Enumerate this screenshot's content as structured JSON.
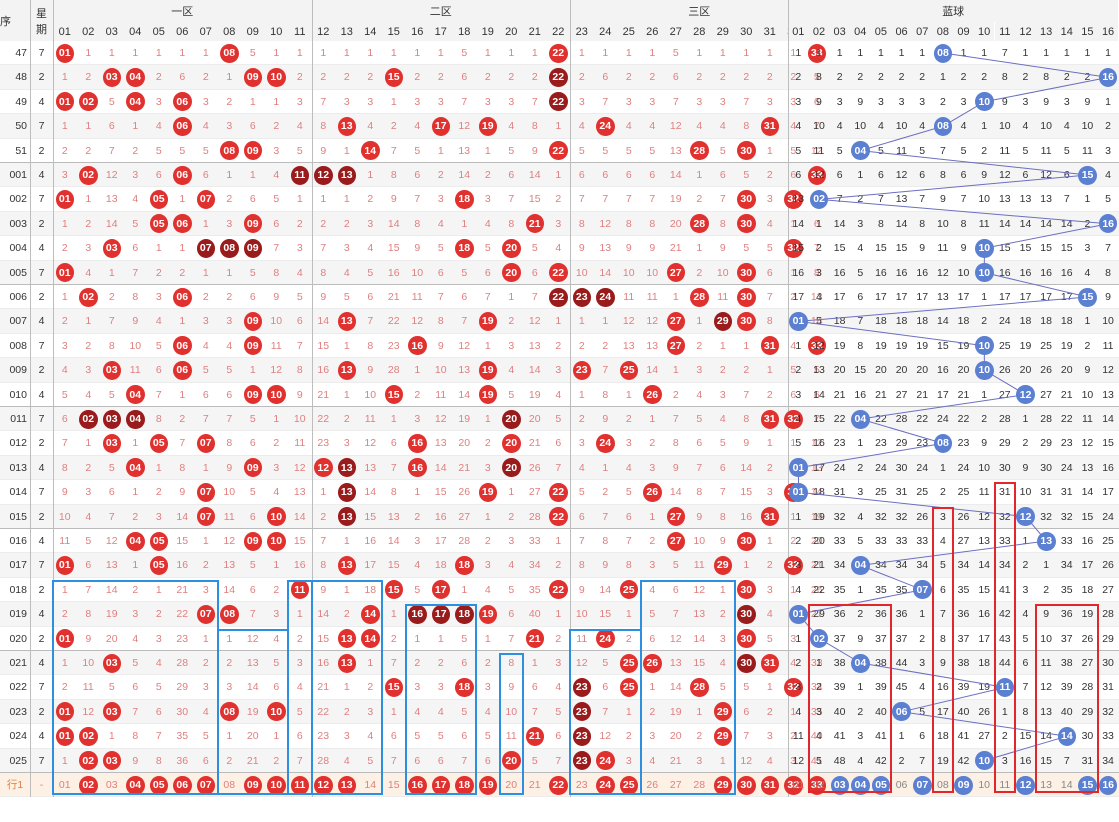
{
  "header": {
    "sort_label": "序",
    "weekday_label": [
      "星",
      "期"
    ],
    "zones": [
      "一区",
      "二区",
      "三区",
      "蓝球"
    ],
    "red_numbers": [
      "01",
      "02",
      "03",
      "04",
      "05",
      "06",
      "07",
      "08",
      "09",
      "10",
      "11",
      "12",
      "13",
      "14",
      "15",
      "16",
      "17",
      "18",
      "19",
      "20",
      "21",
      "22",
      "23",
      "24",
      "25",
      "26",
      "27",
      "28",
      "29",
      "30",
      "31",
      "32",
      "33"
    ],
    "blue_numbers": [
      "01",
      "02",
      "03",
      "04",
      "05",
      "06",
      "07",
      "08",
      "09",
      "10",
      "11",
      "12",
      "13",
      "14",
      "15",
      "16"
    ]
  },
  "colors": {
    "red_ball": "#e0312f",
    "dark_ball": "#9a1b1b",
    "blue_ball": "#5b7fd1",
    "red_miss_text": "#e07f7f",
    "blue_box": "#2d8fe0",
    "red_box": "#e3262b",
    "stripe": "#f5f5f5",
    "pick_row": "#fdf0e4"
  },
  "rows": [
    {
      "issue": "47",
      "week": "7",
      "red": [
        1,
        8,
        22,
        33
      ],
      "dark": [],
      "blue": 8
    },
    {
      "issue": "48",
      "week": "2",
      "red": [
        3,
        4,
        9,
        10,
        15
      ],
      "dark": [
        22
      ],
      "blue": 16
    },
    {
      "issue": "49",
      "week": "4",
      "red": [
        1,
        2,
        4,
        6
      ],
      "dark": [
        22
      ],
      "blue": 10
    },
    {
      "issue": "50",
      "week": "7",
      "red": [
        6,
        13,
        17,
        19,
        24,
        31
      ],
      "dark": [],
      "blue": 8
    },
    {
      "issue": "51",
      "week": "2",
      "red": [
        8,
        9,
        14,
        22,
        28,
        30
      ],
      "dark": [],
      "blue": 4
    },
    {
      "issue": "001",
      "week": "4",
      "red": [
        2,
        6,
        33
      ],
      "dark": [
        11,
        12,
        13
      ],
      "blue": 15
    },
    {
      "issue": "002",
      "week": "7",
      "red": [
        1,
        5,
        7,
        18,
        30,
        32
      ],
      "dark": [],
      "blue": 2
    },
    {
      "issue": "003",
      "week": "2",
      "red": [
        5,
        6,
        9,
        21,
        28,
        30
      ],
      "dark": [],
      "blue": 16
    },
    {
      "issue": "004",
      "week": "4",
      "red": [
        3,
        18,
        20,
        32
      ],
      "dark": [
        7,
        8,
        9
      ],
      "blue": 10
    },
    {
      "issue": "005",
      "week": "7",
      "red": [
        1,
        20,
        22,
        27,
        30
      ],
      "dark": [],
      "blue": 10
    },
    {
      "issue": "006",
      "week": "2",
      "red": [
        2,
        6,
        28,
        30
      ],
      "dark": [
        22,
        23,
        24
      ],
      "blue": 15
    },
    {
      "issue": "007",
      "week": "4",
      "red": [
        9,
        13,
        19,
        27,
        30
      ],
      "dark": [
        29
      ],
      "blue": 1
    },
    {
      "issue": "008",
      "week": "7",
      "red": [
        6,
        9,
        16,
        27,
        31,
        33
      ],
      "dark": [],
      "blue": 10
    },
    {
      "issue": "009",
      "week": "2",
      "red": [
        3,
        6,
        13,
        19,
        23,
        25
      ],
      "dark": [],
      "blue": 10
    },
    {
      "issue": "010",
      "week": "4",
      "red": [
        4,
        9,
        10,
        15,
        19,
        26
      ],
      "dark": [],
      "blue": 12
    },
    {
      "issue": "011",
      "week": "7",
      "red": [
        31,
        32
      ],
      "dark": [
        2,
        3,
        4,
        20
      ],
      "blue": 4
    },
    {
      "issue": "012",
      "week": "2",
      "red": [
        3,
        5,
        7,
        16,
        20,
        24
      ],
      "dark": [],
      "blue": 8
    },
    {
      "issue": "013",
      "week": "4",
      "red": [
        4,
        9,
        12,
        16
      ],
      "dark": [
        13,
        20
      ],
      "blue": 1
    },
    {
      "issue": "014",
      "week": "7",
      "red": [
        7,
        19,
        22,
        26,
        32
      ],
      "dark": [
        13
      ],
      "blue": 1
    },
    {
      "issue": "015",
      "week": "2",
      "red": [
        7,
        10,
        22,
        27,
        31
      ],
      "dark": [
        13
      ],
      "blue": 12
    },
    {
      "issue": "016",
      "week": "4",
      "red": [
        4,
        5,
        9,
        10,
        27,
        30
      ],
      "dark": [],
      "blue": 13
    },
    {
      "issue": "017",
      "week": "7",
      "red": [
        1,
        5,
        13,
        18,
        29,
        32
      ],
      "dark": [],
      "blue": 4
    },
    {
      "issue": "018",
      "week": "2",
      "red": [
        11,
        15,
        17,
        22,
        25,
        30
      ],
      "dark": [],
      "blue": 7
    },
    {
      "issue": "019",
      "week": "4",
      "red": [
        7,
        8,
        14,
        19
      ],
      "dark": [
        16,
        17,
        18,
        30
      ],
      "blue": 1
    },
    {
      "issue": "020",
      "week": "2",
      "red": [
        1,
        13,
        14,
        21,
        24,
        30
      ],
      "dark": [],
      "blue": 2
    },
    {
      "issue": "021",
      "week": "4",
      "red": [
        3,
        13,
        25,
        26,
        31
      ],
      "dark": [
        30
      ],
      "blue": 4
    },
    {
      "issue": "022",
      "week": "7",
      "red": [
        15,
        18,
        25,
        28,
        32
      ],
      "dark": [
        23
      ],
      "blue": 11
    },
    {
      "issue": "023",
      "week": "2",
      "red": [
        1,
        3,
        8,
        10,
        29
      ],
      "dark": [
        23
      ],
      "blue": 6
    },
    {
      "issue": "024",
      "week": "4",
      "red": [
        1,
        2,
        21,
        29
      ],
      "dark": [
        23
      ],
      "blue": 14
    },
    {
      "issue": "025",
      "week": "7",
      "red": [
        2,
        3,
        20,
        24
      ],
      "dark": [
        23
      ],
      "blue": 10
    }
  ],
  "pick_row": {
    "label": "行1",
    "week": "-",
    "red_picks": [
      2,
      4,
      5,
      6,
      7,
      9,
      10,
      11,
      12,
      13,
      16,
      17,
      18,
      19,
      22,
      24,
      25,
      29,
      30,
      31,
      32,
      33
    ],
    "blue_picks": [
      3,
      4,
      5,
      7,
      9,
      12,
      15,
      16
    ]
  }
}
